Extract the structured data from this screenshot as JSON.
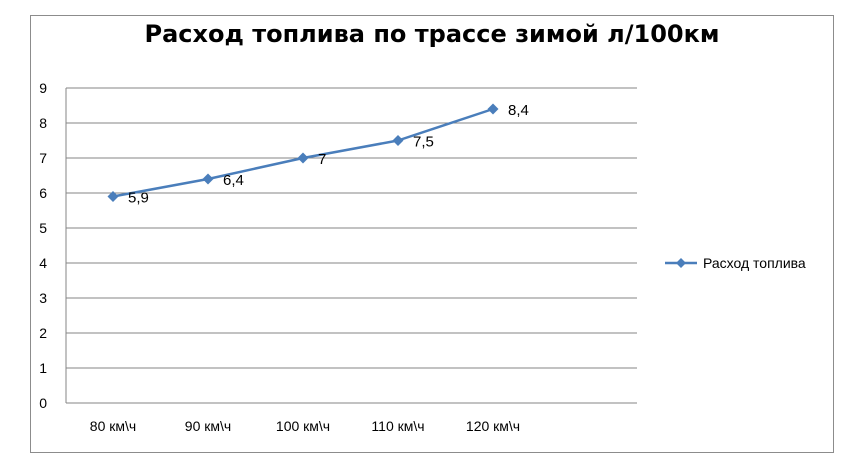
{
  "chart_data": {
    "type": "line",
    "title": "Расход топлива по трассе зимой л/100км",
    "xlabel": "",
    "ylabel": "",
    "categories": [
      "80 км\\ч",
      "90 км\\ч",
      "100 км\\ч",
      "110 км\\ч",
      "120 км\\ч"
    ],
    "series": [
      {
        "name": "Расход топлива",
        "values": [
          5.9,
          6.4,
          7,
          7.5,
          8.4
        ],
        "labels": [
          "5,9",
          "6,4",
          "7",
          "7,5",
          "8,4"
        ],
        "color": "#4a7ebb",
        "marker": "diamond"
      }
    ],
    "ylim": [
      0,
      9
    ],
    "yticks": [
      "0",
      "1",
      "2",
      "3",
      "4",
      "5",
      "6",
      "7",
      "8",
      "9"
    ],
    "grid": true,
    "legend": "right"
  }
}
